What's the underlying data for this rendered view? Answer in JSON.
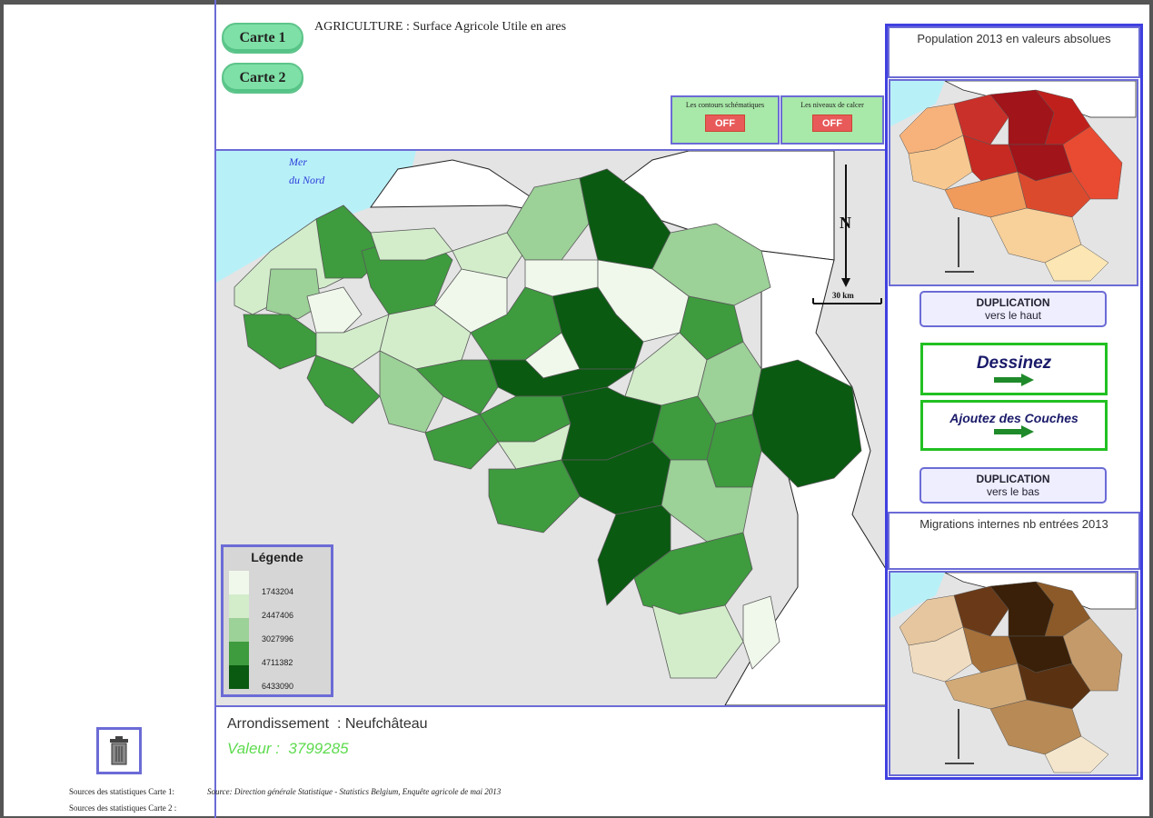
{
  "buttons": {
    "carte1": "Carte 1",
    "carte2": "Carte 2"
  },
  "map_title": "AGRICULTURE : Surface Agricole Utile en ares",
  "toggles": [
    {
      "label": "Les contours schématiques",
      "state": "OFF"
    },
    {
      "label": "Les niveaux de calcer",
      "state": "OFF"
    }
  ],
  "map": {
    "sea_label_1": "Mer",
    "sea_label_2": "du Nord",
    "north_label": "N",
    "scale_label": "30 km"
  },
  "legend": {
    "title": "Légende",
    "classes": [
      {
        "label": "1743204",
        "color": "#f0f8ec"
      },
      {
        "label": "2447406",
        "color": "#d3edcb"
      },
      {
        "label": "3027996",
        "color": "#9cd198"
      },
      {
        "label": "4711382",
        "color": "#3e9b3e"
      },
      {
        "label": "6433090",
        "color": "#0a5a12"
      }
    ]
  },
  "info": {
    "arrondissement_label": "Arrondissement",
    "arrondissement_value": ": Neufchâteau",
    "valeur_label": "Valeur :",
    "valeur_value": "3799285"
  },
  "right": {
    "top_title": "Population 2013 en valeurs absolues",
    "dup_up_line1": "DUPLICATION",
    "dup_up_line2": "vers le haut",
    "draw_label": "Dessinez",
    "layers_label": "Ajoutez des Couches",
    "dup_down_line1": "DUPLICATION",
    "dup_down_line2": "vers le bas",
    "bottom_title": "Migrations internes nb entrées 2013"
  },
  "sources": {
    "label1": "Sources des statistiques Carte 1:",
    "text1": "Source: Direction générale Statistique - Statistics Belgium, Enquête agricole de mai 2013",
    "label2": "Sources des statistiques Carte 2 :"
  },
  "colors": {
    "frame_blue": "#6b6bd6",
    "sea": "#b8f0f8",
    "button_green": "#7ee0a6",
    "off_red": "#e85a5a",
    "valeur_green": "#5ddb4e"
  }
}
